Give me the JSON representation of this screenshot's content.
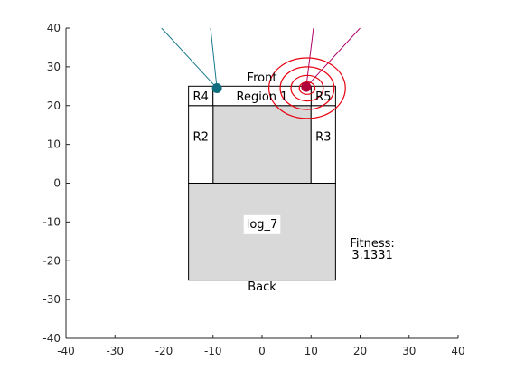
{
  "chart_data": {
    "type": "scatter",
    "xlim": [
      -40,
      40
    ],
    "ylim": [
      -40,
      40
    ],
    "xticks": [
      -40,
      -30,
      -20,
      -10,
      0,
      10,
      20,
      30,
      40
    ],
    "yticks": [
      -40,
      -30,
      -20,
      -10,
      0,
      10,
      20,
      30,
      40
    ],
    "grid": false,
    "regions": [
      {
        "name": "log",
        "x": [
          -15,
          15
        ],
        "y": [
          -25,
          0
        ],
        "fill": "#d9d9d9"
      },
      {
        "name": "region1",
        "x": [
          -10,
          10
        ],
        "y": [
          0,
          20
        ],
        "fill": "#d9d9d9"
      },
      {
        "name": "r2",
        "x": [
          -15,
          -10
        ],
        "y": [
          0,
          20
        ],
        "fill": "#ffffff"
      },
      {
        "name": "r3",
        "x": [
          10,
          15
        ],
        "y": [
          0,
          20
        ],
        "fill": "#ffffff"
      },
      {
        "name": "r4",
        "x": [
          -15,
          -10
        ],
        "y": [
          20,
          25
        ],
        "fill": "#ffffff"
      },
      {
        "name": "r5",
        "x": [
          10,
          15
        ],
        "y": [
          20,
          25
        ],
        "fill": "#ffffff"
      },
      {
        "name": "front-strip",
        "x": [
          -10,
          10
        ],
        "y": [
          20,
          25
        ],
        "fill": "#ffffff"
      }
    ],
    "labels": {
      "front": "Front",
      "back": "Back",
      "region1": "Region 1",
      "r2": "R2",
      "r3": "R3",
      "r4": "R4",
      "r5": "R5",
      "log": "log_7",
      "fitness_title": "Fitness:",
      "fitness_value": "3.1331"
    },
    "points": [
      {
        "name": "teal-sensor",
        "x": -9.2,
        "y": 24.5,
        "color": "#0f6e7e"
      },
      {
        "name": "red-sensor",
        "x": 9.0,
        "y": 24.8,
        "color": "#b0003a"
      }
    ],
    "rays": [
      {
        "from": [
          -9.2,
          24.5
        ],
        "to": [
          -20.5,
          40
        ],
        "color": "#1a7a8c"
      },
      {
        "from": [
          -9.2,
          24.5
        ],
        "to": [
          -10.5,
          40
        ],
        "color": "#1a7a8c"
      },
      {
        "from": [
          9.0,
          24.8
        ],
        "to": [
          10.5,
          40
        ],
        "color": "#b0006a"
      },
      {
        "from": [
          9.0,
          24.8
        ],
        "to": [
          20.0,
          40
        ],
        "color": "#b0006a"
      }
    ],
    "circles": [
      {
        "cx": 9.2,
        "cy": 24.5,
        "r": 1.6,
        "color": "#e8000e"
      },
      {
        "cx": 9.2,
        "cy": 24.5,
        "r": 3.3,
        "color": "#e8000e"
      },
      {
        "cx": 9.2,
        "cy": 24.5,
        "r": 5.5,
        "color": "#e8000e"
      },
      {
        "cx": 9.2,
        "cy": 24.5,
        "r": 7.8,
        "color": "#e8000e"
      }
    ]
  }
}
